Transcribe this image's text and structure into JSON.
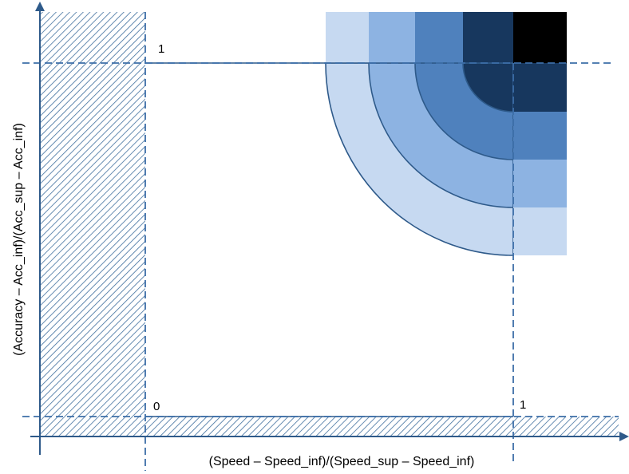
{
  "axes": {
    "x_title": "(Speed – Speed_inf)/(Speed_sup – Speed_inf)",
    "y_title": "(Accuracy – Acc_inf)/(Acc_sup  – Acc_inf)"
  },
  "tick_labels": {
    "origin": "0",
    "x_one": "1",
    "y_one": "1"
  },
  "colors": {
    "line": "#2e5a8a",
    "guide_dashed": "#3c6ea8",
    "hatch": "#3f6f9e",
    "band_lightest": "#c6d9f1",
    "band_light": "#8db3e2",
    "band_mid": "#4f81bd",
    "band_dark": "#17375e",
    "corner_black": "#000000"
  },
  "color_bands": [
    "#c6d9f1",
    "#8db3e2",
    "#4f81bd",
    "#17375e",
    "#000000"
  ]
}
